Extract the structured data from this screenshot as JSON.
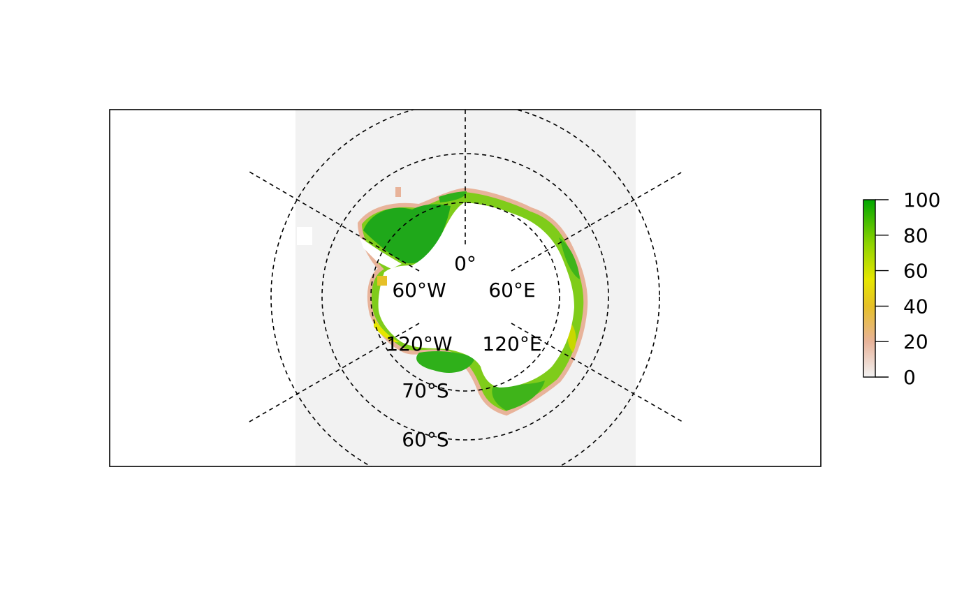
{
  "map": {
    "projection": "south-polar-stereographic",
    "meridian_labels": [
      "0°",
      "60°W",
      "60°E",
      "120°W",
      "120°E"
    ],
    "parallel_labels": [
      "70°S",
      "60°S"
    ],
    "colors": {
      "background_panel": "#f2f2f2",
      "ice": "#ffffff",
      "frame": "#000000"
    }
  },
  "legend": {
    "ticks": [
      "0",
      "20",
      "40",
      "60",
      "80",
      "100"
    ],
    "range": [
      0,
      100
    ],
    "gradient": [
      "#f2f2f2",
      "#e8b39a",
      "#e6c028",
      "#e6e600",
      "#8fd400",
      "#00a600"
    ]
  }
}
